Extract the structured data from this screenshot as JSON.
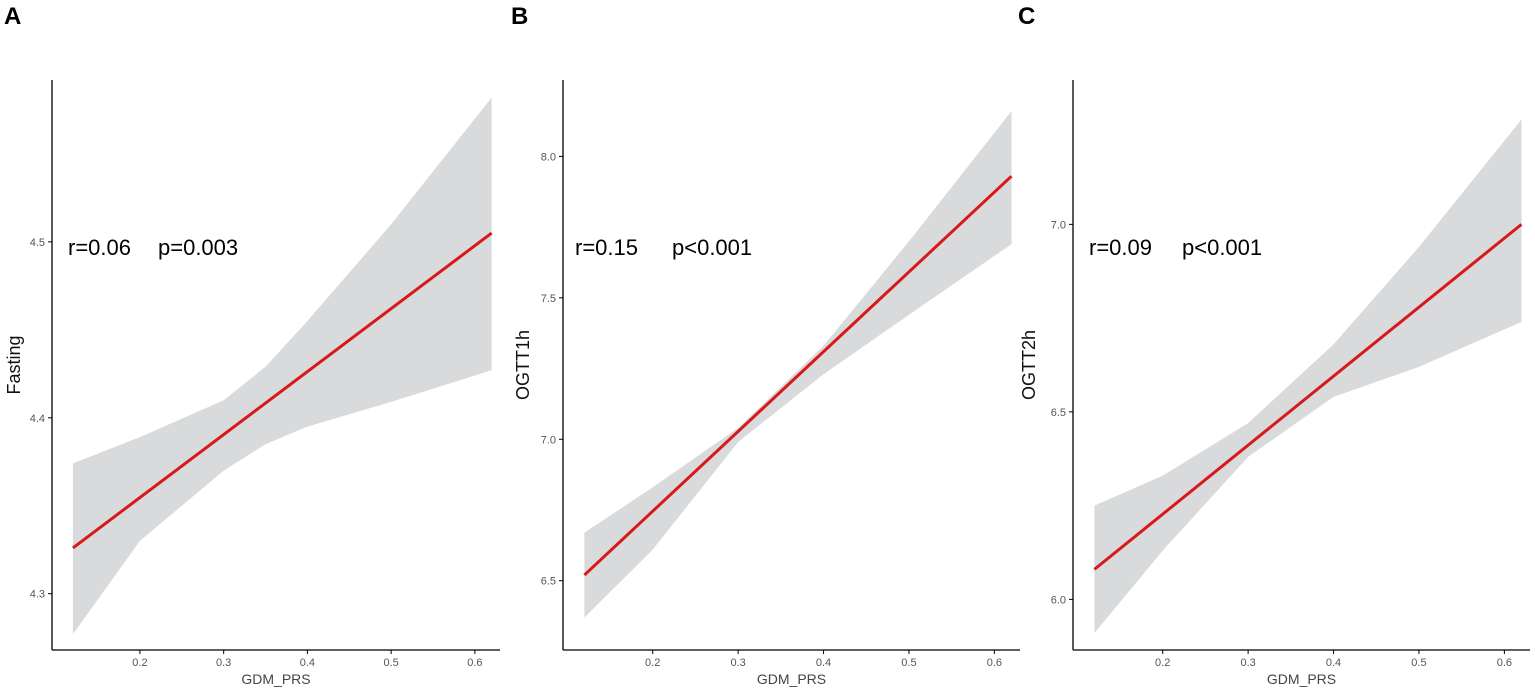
{
  "chart_data": [
    {
      "panel": "A",
      "type": "line",
      "xlabel": "GDM_PRS",
      "ylabel": "Fasting",
      "annotation": {
        "r": "r=0.06",
        "p": "p=0.003"
      },
      "xlim": [
        0.095,
        0.63
      ],
      "ylim": [
        4.268,
        4.592
      ],
      "xticks": [
        0.2,
        0.3,
        0.4,
        0.5,
        0.6
      ],
      "xtick_labels": [
        "0.2",
        "0.3",
        "0.4",
        "0.5",
        "0.6"
      ],
      "yticks": [
        4.3,
        4.4,
        4.5
      ],
      "ytick_labels": [
        "4.3",
        "4.4",
        "4.5"
      ],
      "x_range": [
        0.12,
        0.62
      ],
      "fit": {
        "x": [
          0.12,
          0.62
        ],
        "y": [
          4.326,
          4.505
        ]
      },
      "ci_upper": {
        "x": [
          0.12,
          0.2,
          0.3,
          0.35,
          0.4,
          0.5,
          0.62
        ],
        "y": [
          4.374,
          4.389,
          4.41,
          4.429,
          4.455,
          4.51,
          4.582
        ]
      },
      "ci_lower": {
        "x": [
          0.12,
          0.2,
          0.3,
          0.35,
          0.4,
          0.5,
          0.62
        ],
        "y": [
          4.277,
          4.33,
          4.37,
          4.385,
          4.395,
          4.409,
          4.427
        ]
      },
      "colors": {
        "line": "#d7191c",
        "band": "#d9dadb"
      }
    },
    {
      "panel": "B",
      "type": "line",
      "xlabel": "GDM_PRS",
      "ylabel": "OGTT1h",
      "annotation": {
        "r": "r=0.15",
        "p": "p<0.001"
      },
      "xlim": [
        0.095,
        0.63
      ],
      "ylim": [
        6.255,
        8.27
      ],
      "xticks": [
        0.2,
        0.3,
        0.4,
        0.5,
        0.6
      ],
      "xtick_labels": [
        "0.2",
        "0.3",
        "0.4",
        "0.5",
        "0.6"
      ],
      "yticks": [
        6.5,
        7.0,
        7.5,
        8.0
      ],
      "ytick_labels": [
        "6.5",
        "7.0",
        "7.5",
        "8.0"
      ],
      "x_range": [
        0.12,
        0.62
      ],
      "fit": {
        "x": [
          0.12,
          0.62
        ],
        "y": [
          6.52,
          7.93
        ]
      },
      "ci_upper": {
        "x": [
          0.12,
          0.2,
          0.3,
          0.4,
          0.5,
          0.62
        ],
        "y": [
          6.67,
          6.83,
          7.04,
          7.33,
          7.7,
          8.16
        ]
      },
      "ci_lower": {
        "x": [
          0.12,
          0.2,
          0.3,
          0.4,
          0.5,
          0.62
        ],
        "y": [
          6.37,
          6.61,
          6.99,
          7.23,
          7.44,
          7.69
        ]
      },
      "colors": {
        "line": "#d7191c",
        "band": "#d9dadb"
      }
    },
    {
      "panel": "C",
      "type": "line",
      "xlabel": "GDM_PRS",
      "ylabel": "OGTT2h",
      "annotation": {
        "r": "r=0.09",
        "p": "p<0.001"
      },
      "xlim": [
        0.095,
        0.63
      ],
      "ylim": [
        5.865,
        7.385
      ],
      "xticks": [
        0.2,
        0.3,
        0.4,
        0.5,
        0.6
      ],
      "xtick_labels": [
        "0.2",
        "0.3",
        "0.4",
        "0.5",
        "0.6"
      ],
      "yticks": [
        6.0,
        6.5,
        7.0
      ],
      "ytick_labels": [
        "6.0",
        "6.5",
        "7.0"
      ],
      "x_range": [
        0.12,
        0.62
      ],
      "fit": {
        "x": [
          0.12,
          0.62
        ],
        "y": [
          6.08,
          7.0
        ]
      },
      "ci_upper": {
        "x": [
          0.12,
          0.2,
          0.3,
          0.4,
          0.5,
          0.62
        ],
        "y": [
          6.25,
          6.33,
          6.47,
          6.68,
          6.94,
          7.28
        ]
      },
      "ci_lower": {
        "x": [
          0.12,
          0.2,
          0.3,
          0.4,
          0.5,
          0.62
        ],
        "y": [
          5.91,
          6.13,
          6.38,
          6.54,
          6.62,
          6.74
        ]
      },
      "colors": {
        "line": "#d7191c",
        "band": "#d9dadb"
      }
    }
  ]
}
